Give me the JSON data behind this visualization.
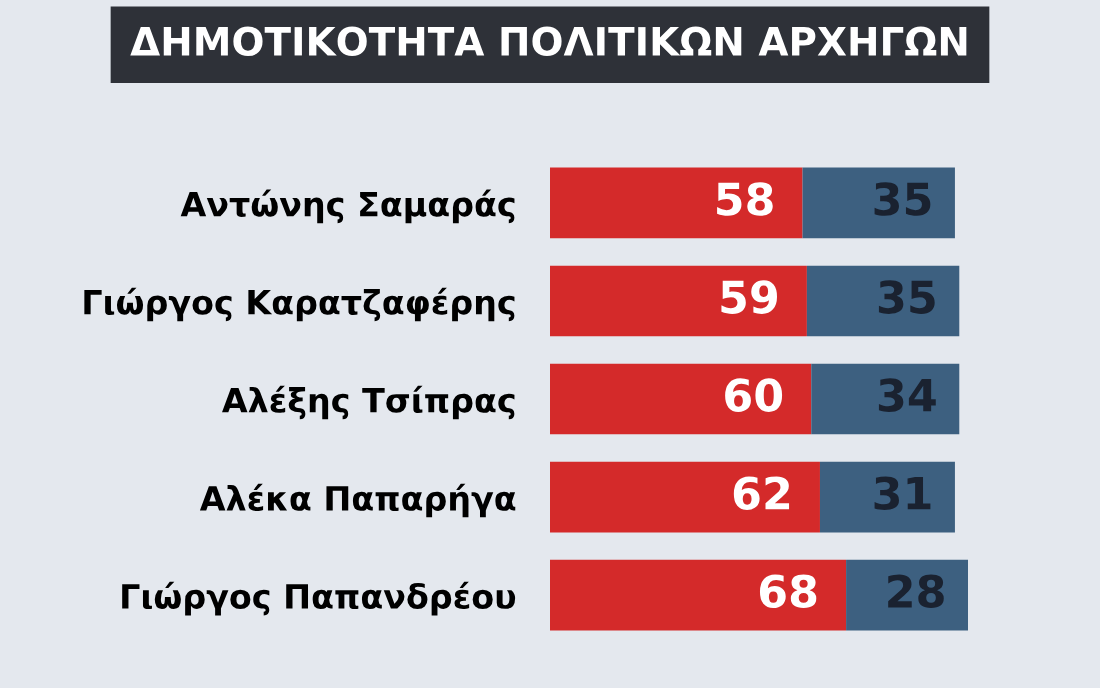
{
  "chart_data": {
    "type": "bar",
    "orientation": "horizontal",
    "stacked": true,
    "title": "ΔΗΜΟΤΙΚΟΤΗΤΑ ΠΟΛΙΤΙΚΩΝ ΑΡΧΗΓΩΝ",
    "categories": [
      "Αντώνης Σαμαράς",
      "Γιώργος Καρατζαφέρης",
      "Αλέξης Τσίπρας",
      "Αλέκα Παπαρήγα",
      "Γιώργος Παπανδρέου"
    ],
    "series": [
      {
        "color": "#d42a2a",
        "values": [
          58,
          59,
          60,
          62,
          68
        ]
      },
      {
        "color": "#3d6080",
        "values": [
          35,
          35,
          34,
          31,
          28
        ]
      }
    ],
    "data_labels": true,
    "tick_labels": "y",
    "grid": false,
    "legend": false
  }
}
